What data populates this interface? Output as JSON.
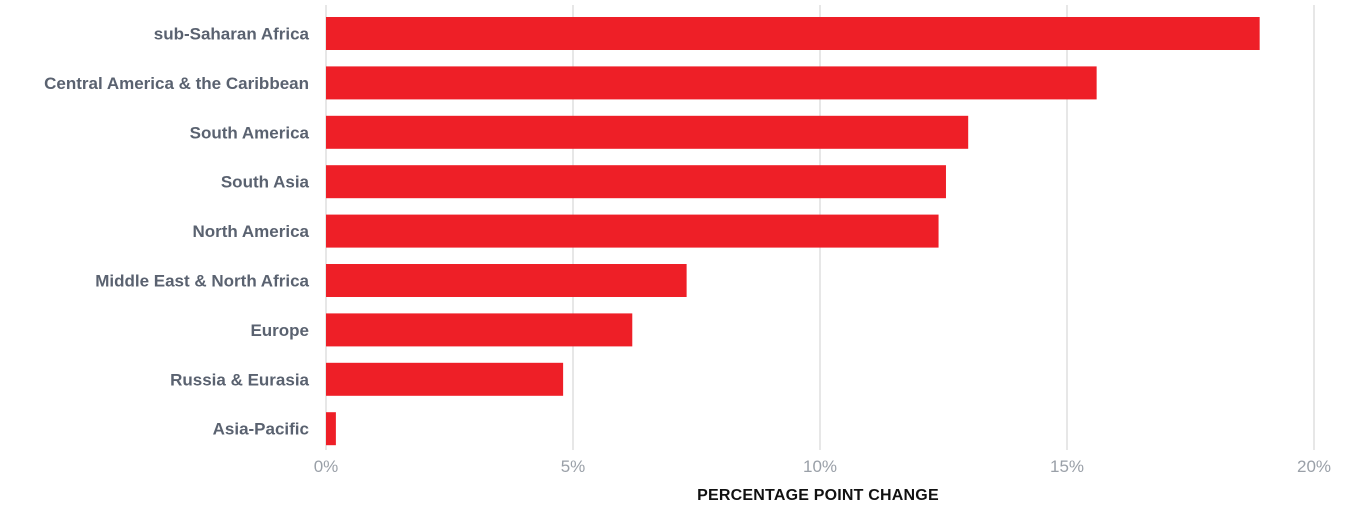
{
  "chart_data": {
    "type": "bar",
    "orientation": "horizontal",
    "categories": [
      "sub-Saharan Africa",
      "Central America & the Caribbean",
      "South America",
      "South Asia",
      "North America",
      "Middle East & North Africa",
      "Europe",
      "Russia & Eurasia",
      "Asia-Pacific"
    ],
    "values": [
      18.9,
      15.6,
      13.0,
      12.55,
      12.4,
      7.3,
      6.2,
      4.8,
      0.2
    ],
    "xlabel": "PERCENTAGE POINT CHANGE",
    "xlim": [
      0,
      20
    ],
    "xticks": [
      0,
      5,
      10,
      15,
      20
    ],
    "xtick_labels": [
      "0%",
      "5%",
      "10%",
      "15%",
      "20%"
    ],
    "grid": "vertical",
    "legend": "none",
    "colors": {
      "bar": "#ee1f27",
      "category_text": "#5a6270",
      "tick_text": "#9aa0a8",
      "grid": "#cfcfcf",
      "axis_title": "#111111"
    }
  }
}
